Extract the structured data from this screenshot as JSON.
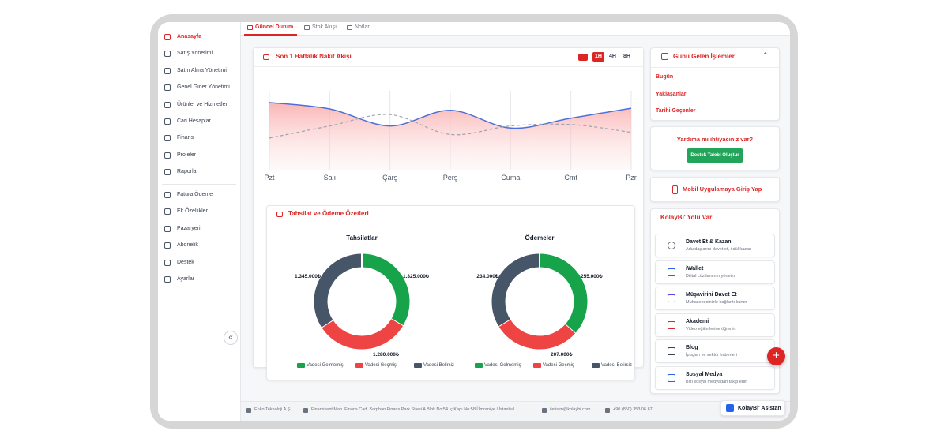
{
  "sidebar": {
    "items": [
      "Anasayfa",
      "Satış Yönetimi",
      "Satın Alma Yönetimi",
      "Genel Gider Yönetimi",
      "Ürünler ve Hizmetler",
      "Cari Hesaplar",
      "Finans",
      "Projeler",
      "Raporlar"
    ],
    "items2": [
      "Fatura Ödeme",
      "Ek Özellikler",
      "Pazaryeri",
      "Abonelik",
      "Destek",
      "Ayarlar"
    ],
    "collapse": "«"
  },
  "tabs": [
    "Güncel Durum",
    "Stok Akışı",
    "Notlar"
  ],
  "cash_flow": {
    "title": "Son 1 Haftalık Nakit Akışı",
    "ranges": [
      "1H",
      "4H",
      "8H"
    ],
    "chart": {
      "type": "line",
      "categories": [
        "Pzt",
        "Salı",
        "Çarş",
        "Perş",
        "Cuma",
        "Cmt",
        "Pzr"
      ],
      "ylim": [
        0,
        100
      ],
      "series": [
        {
          "color": "#4f6fd8",
          "values": [
            89,
            80,
            56,
            78,
            53,
            67,
            81
          ]
        },
        {
          "color": "#9ca3af",
          "values": [
            39,
            56,
            72,
            44,
            56,
            58,
            47
          ]
        }
      ]
    }
  },
  "summary": {
    "title": "Tahsilat ve Ödeme Özetleri",
    "charts": [
      {
        "type": "pie",
        "title": "Tahsilatlar",
        "categories": [
          "Vadesi Gelmemiş",
          "Vadesi Geçmiş",
          "Vadesi Belirsiz"
        ],
        "colors": [
          "#16a34a",
          "#ef4444",
          "#475569"
        ],
        "values": [
          1325000,
          1280000,
          1345000
        ],
        "value_labels": [
          "1.325.000₺",
          "1.280.000₺",
          "1.345.000₺"
        ]
      },
      {
        "type": "pie",
        "title": "Ödemeler",
        "categories": [
          "Vadesi Gelmemiş",
          "Vadesi Geçmiş",
          "Vadesi Belirsiz"
        ],
        "colors": [
          "#16a34a",
          "#ef4444",
          "#475569"
        ],
        "values": [
          255000,
          207000,
          234000
        ],
        "value_labels": [
          "255.000₺",
          "207.000₺",
          "234.000₺"
        ]
      }
    ]
  },
  "due": {
    "title": "Günü Gelen İşlemler",
    "items": [
      "Bugün",
      "Yaklaşanlar",
      "Tarihi Geçenler"
    ]
  },
  "help": {
    "title": "Yardıma mı ihtiyacınız var?",
    "button": "Destek Talebi Oluştur"
  },
  "mobile": "Mobil Uygulamaya Giriş Yap",
  "promo": {
    "title": "KolayBi' Yolu Var!",
    "items": [
      {
        "title": "Davet Et & Kazan",
        "subtitle": "Arkadaşlarını davet et, ödül kazan"
      },
      {
        "title": "iWallet",
        "subtitle": "Dijital cüzdanınızı yönetin"
      },
      {
        "title": "Müşavirini Davet Et",
        "subtitle": "Muhasebecinizle bağlantı kurun"
      },
      {
        "title": "Akademi",
        "subtitle": "Video eğitimlerine öğrenin"
      },
      {
        "title": "Blog",
        "subtitle": "İpuçları ve sektör haberleri"
      },
      {
        "title": "Sosyal Medya",
        "subtitle": "Bizi sosyal medyadan takip edin"
      }
    ]
  },
  "fab": "+",
  "footer": {
    "company": "Enko Teknoloji A.Ş",
    "address": "Finanskent Mah. Finans Cad. Sarphan Finans Park Sitesi A Blok No:54 İç Kapı No:58 Ümraniye / İstanbul",
    "email": "iletisim@kolaybi.com",
    "phone": "+90 (850) 353 06 67",
    "assistant": "KolayBi' Asistan"
  }
}
